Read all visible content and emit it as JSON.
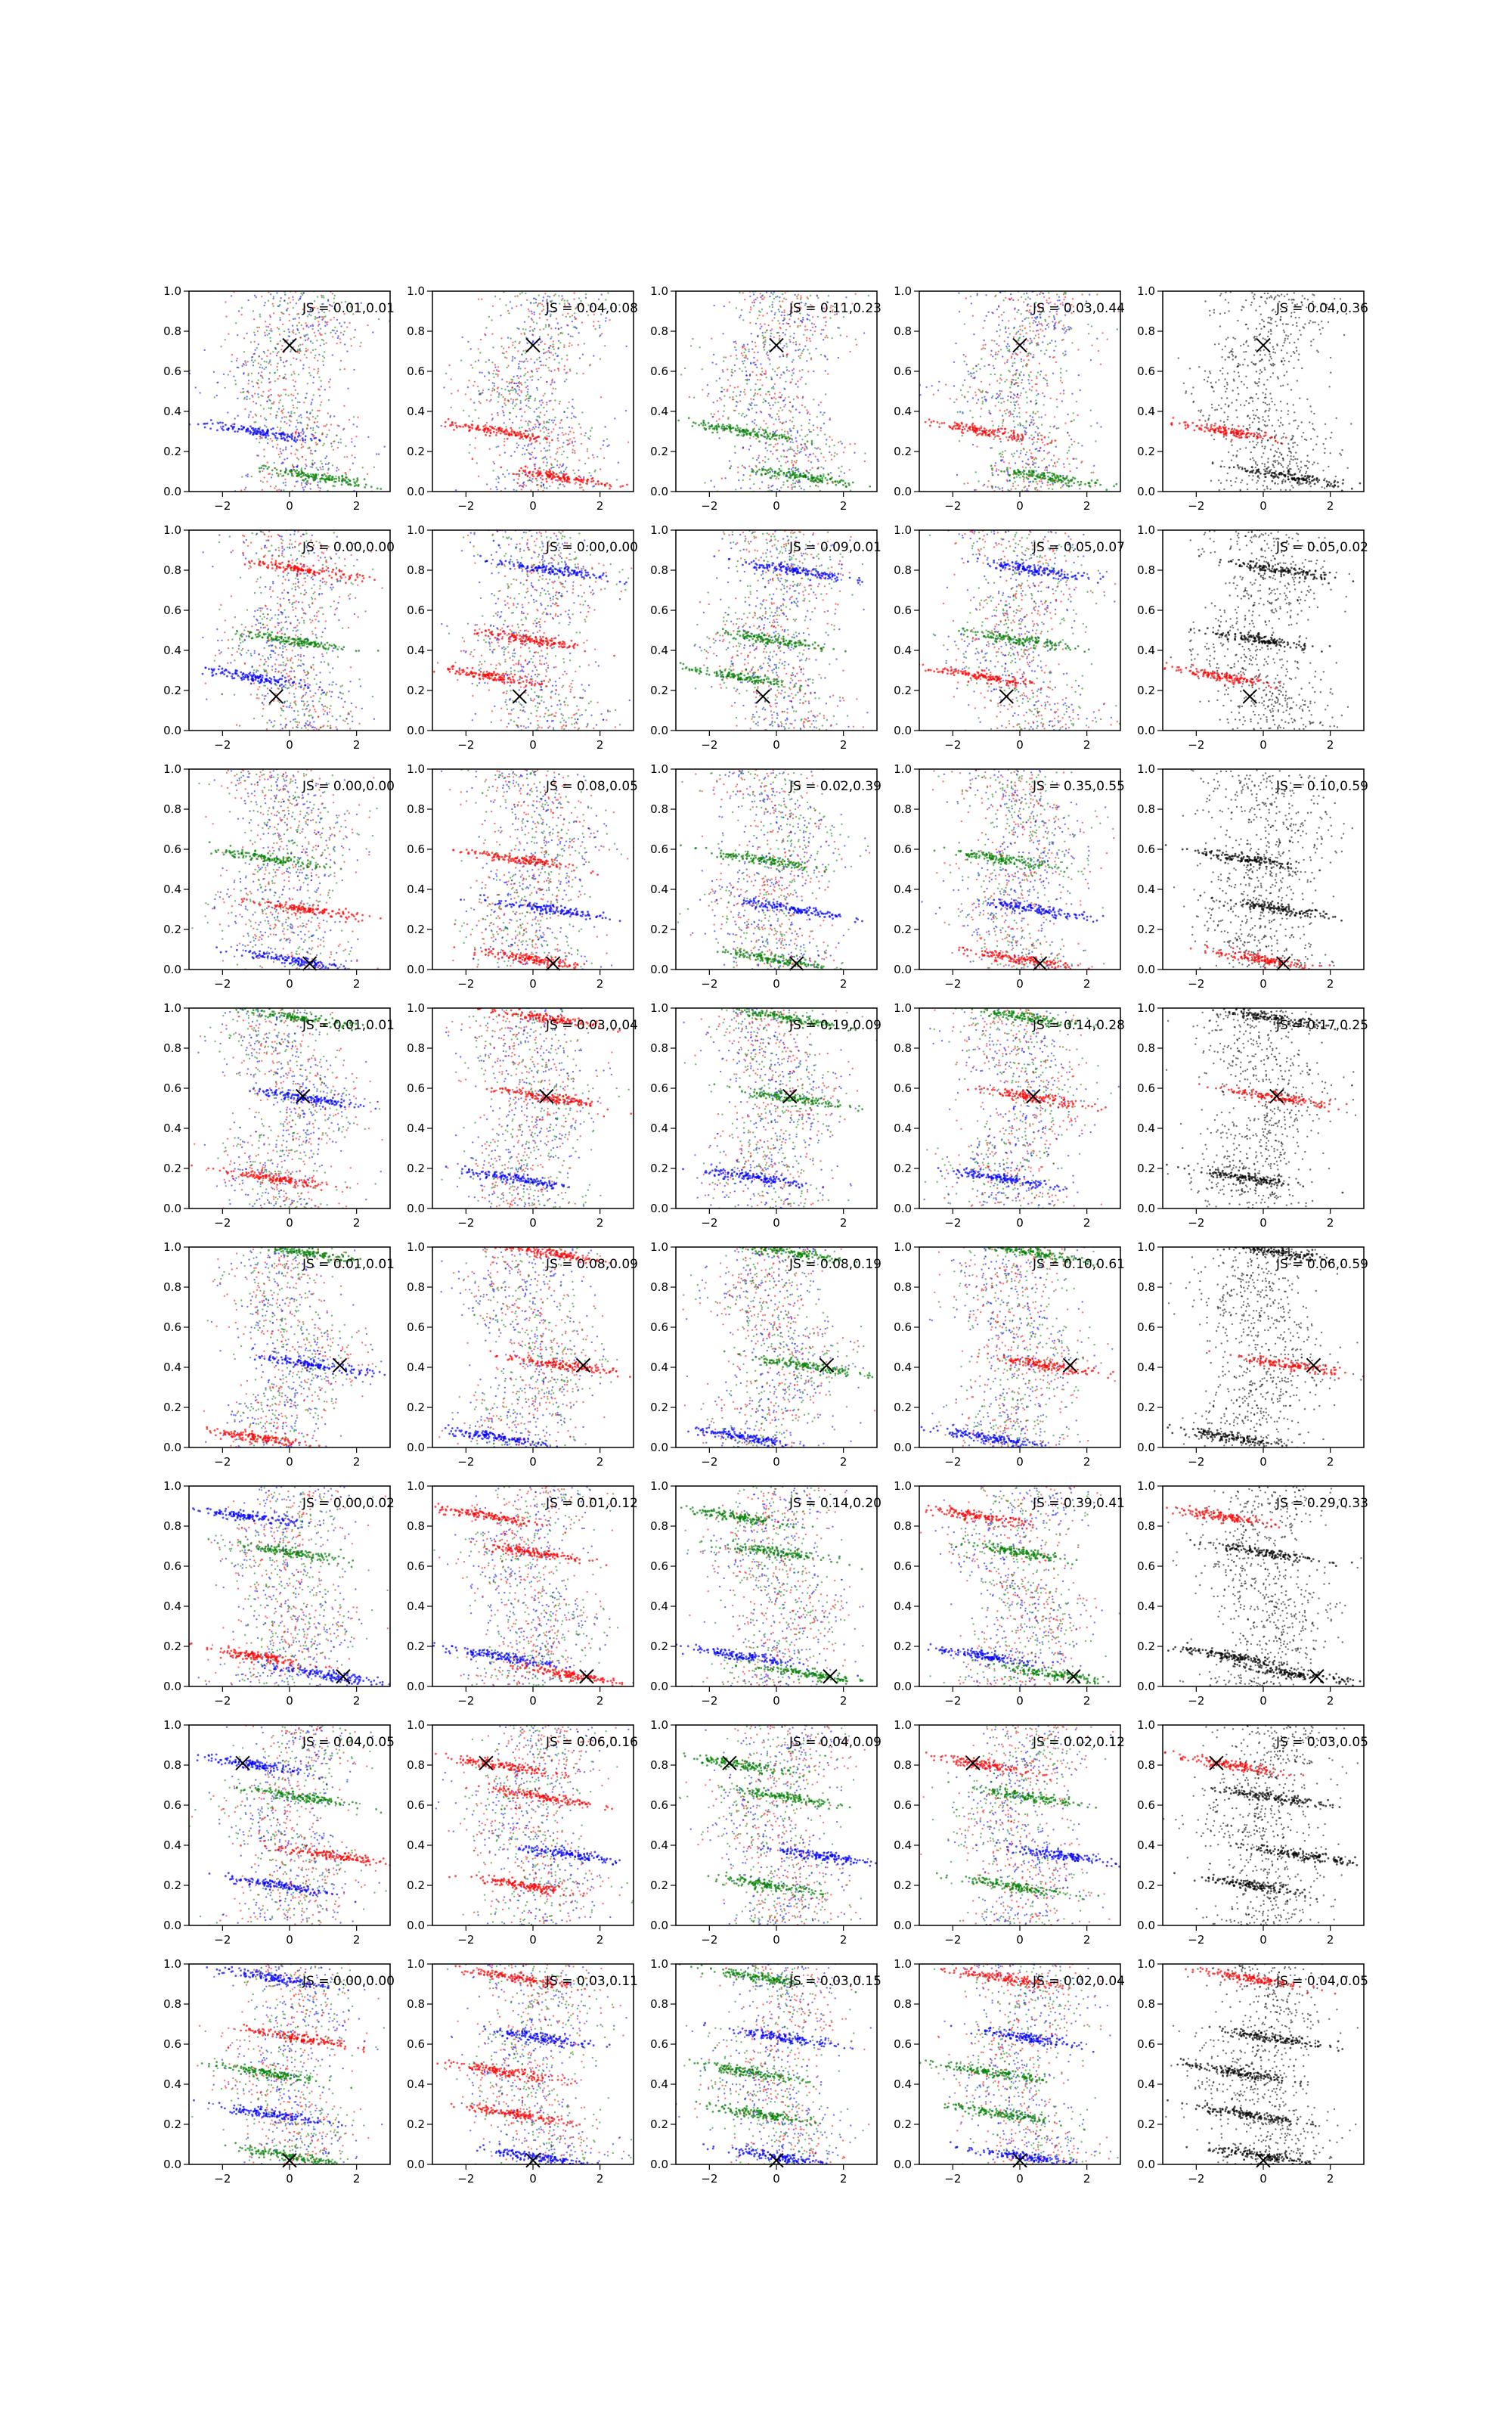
{
  "figure": {
    "colors": {
      "blue": "#0000ff",
      "green": "#008000",
      "red": "#ff0000",
      "black": "#000000",
      "axes": "#000000",
      "background": "#ffffff"
    }
  },
  "chart_data": {
    "type": "scatter",
    "layout": {
      "rows": 8,
      "cols": 5
    },
    "xlim": [
      -3,
      3
    ],
    "ylim": [
      0,
      1
    ],
    "x_ticks": [
      -2,
      0,
      2
    ],
    "y_ticks": [
      0.0,
      0.2,
      0.4,
      0.6,
      0.8,
      1.0
    ],
    "series_colors": [
      "blue",
      "green",
      "red",
      "black"
    ],
    "rows": [
      {
        "marker": [
          0.0,
          0.73
        ],
        "bands": [
          [
            0.3,
            -1.0
          ],
          [
            0.07,
            0.9
          ]
        ],
        "js": [
          "JS = 0.01,0.01",
          "JS = 0.04,0.08",
          "JS = 0.11,0.23",
          "JS = 0.03,0.44",
          "JS = 0.04,0.36"
        ]
      },
      {
        "marker": [
          -0.4,
          0.17
        ],
        "bands": [
          [
            0.27,
            -1.2
          ],
          [
            0.45,
            0.0
          ],
          [
            0.8,
            0.5
          ]
        ],
        "js": [
          "JS = 0.00,0.00",
          "JS = 0.00,0.00",
          "JS = 0.09,0.01",
          "JS = 0.05,0.07",
          "JS = 0.05,0.02"
        ]
      },
      {
        "marker": [
          0.6,
          0.03
        ],
        "bands": [
          [
            0.05,
            0.0
          ],
          [
            0.55,
            -0.5
          ],
          [
            0.3,
            0.5
          ]
        ],
        "js": [
          "JS = 0.00,0.00",
          "JS = 0.08,0.05",
          "JS = 0.02,0.39",
          "JS = 0.35,0.55",
          "JS = 0.10,0.59"
        ]
      },
      {
        "marker": [
          0.4,
          0.56
        ],
        "bands": [
          [
            0.55,
            0.5
          ],
          [
            0.95,
            0.3
          ],
          [
            0.15,
            -0.5
          ]
        ],
        "js": [
          "JS = 0.01,0.01",
          "JS = 0.03,0.04",
          "JS = 0.19,0.09",
          "JS = 0.14,0.28",
          "JS = 0.17,0.25"
        ]
      },
      {
        "marker": [
          1.5,
          0.41
        ],
        "bands": [
          [
            0.41,
            0.8
          ],
          [
            0.97,
            0.5
          ],
          [
            0.05,
            -1.0
          ]
        ],
        "js": [
          "JS = 0.01,0.01",
          "JS = 0.08,0.09",
          "JS = 0.08,0.19",
          "JS = 0.10,0.61",
          "JS = 0.06,0.59"
        ]
      },
      {
        "marker": [
          1.6,
          0.05
        ],
        "bands": [
          [
            0.85,
            -1.3
          ],
          [
            0.67,
            0.0
          ],
          [
            0.15,
            -1.0
          ],
          [
            0.06,
            1.0
          ]
        ],
        "js": [
          "JS = 0.00,0.02",
          "JS = 0.01,0.12",
          "JS = 0.14,0.20",
          "JS = 0.39,0.41",
          "JS = 0.29,0.33"
        ]
      },
      {
        "marker": [
          -1.4,
          0.81
        ],
        "bands": [
          [
            0.8,
            -1.0
          ],
          [
            0.64,
            0.3
          ],
          [
            0.35,
            1.2
          ],
          [
            0.2,
            -0.3
          ]
        ],
        "js": [
          "JS = 0.04,0.05",
          "JS = 0.06,0.16",
          "JS = 0.04,0.09",
          "JS = 0.02,0.12",
          "JS = 0.03,0.05"
        ]
      },
      {
        "marker": [
          0.0,
          0.02
        ],
        "bands": [
          [
            0.93,
            -0.5
          ],
          [
            0.46,
            -0.8
          ],
          [
            0.63,
            0.3
          ],
          [
            0.25,
            -0.5
          ],
          [
            0.04,
            0.0
          ]
        ],
        "js": [
          "JS = 0.00,0.00",
          "JS = 0.03,0.11",
          "JS = 0.03,0.15",
          "JS = 0.02,0.04",
          "JS = 0.04,0.05"
        ]
      }
    ]
  }
}
